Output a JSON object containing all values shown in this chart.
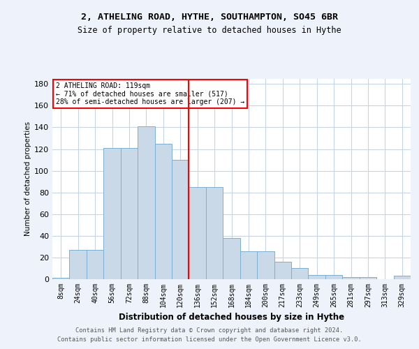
{
  "title1": "2, ATHELING ROAD, HYTHE, SOUTHAMPTON, SO45 6BR",
  "title2": "Size of property relative to detached houses in Hythe",
  "xlabel": "Distribution of detached houses by size in Hythe",
  "ylabel": "Number of detached properties",
  "bar_labels": [
    "8sqm",
    "24sqm",
    "40sqm",
    "56sqm",
    "72sqm",
    "88sqm",
    "104sqm",
    "120sqm",
    "136sqm",
    "152sqm",
    "168sqm",
    "184sqm",
    "200sqm",
    "217sqm",
    "233sqm",
    "249sqm",
    "265sqm",
    "281sqm",
    "297sqm",
    "313sqm",
    "329sqm"
  ],
  "bar_values": [
    1,
    27,
    27,
    121,
    121,
    141,
    125,
    110,
    85,
    85,
    38,
    26,
    26,
    16,
    10,
    4,
    4,
    2,
    2,
    0,
    3
  ],
  "bar_color": "#c9d9e8",
  "bar_edgecolor": "#7bafd4",
  "vline_index": 7,
  "vline_color": "red",
  "annotation_title": "2 ATHELING ROAD: 119sqm",
  "annotation_line1": "← 71% of detached houses are smaller (517)",
  "annotation_line2": "28% of semi-detached houses are larger (207) →",
  "annotation_box_color": "white",
  "annotation_box_edgecolor": "red",
  "ylim": [
    0,
    185
  ],
  "yticks": [
    0,
    20,
    40,
    60,
    80,
    100,
    120,
    140,
    160,
    180
  ],
  "footer1": "Contains HM Land Registry data © Crown copyright and database right 2024.",
  "footer2": "Contains public sector information licensed under the Open Government Licence v3.0.",
  "background_color": "#eef2fb",
  "plot_background_color": "#ffffff",
  "grid_color": "#c5d5e5"
}
